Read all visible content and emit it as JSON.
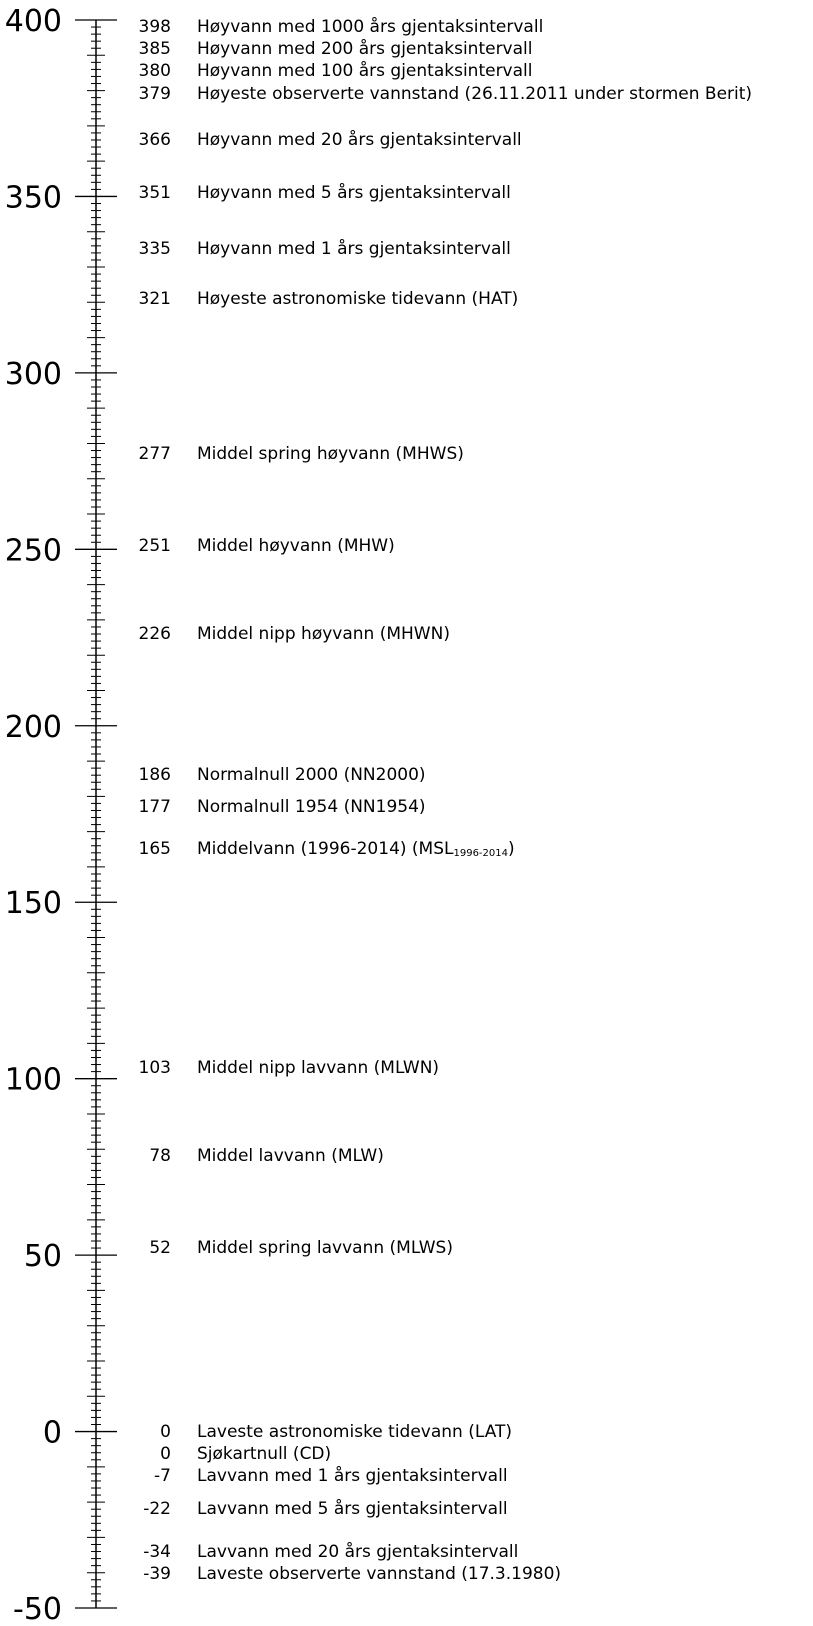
{
  "scale": {
    "min": -50,
    "max": 400,
    "major_labels": [
      "400",
      "350",
      "300",
      "250",
      "200",
      "150",
      "100",
      "50",
      "0",
      "-50"
    ]
  },
  "entries": [
    {
      "value": "398",
      "label": "Høyvann med 1000 års gjentaksintervall",
      "row": 0
    },
    {
      "value": "385",
      "label": "Høyvann med 200 års gjentaksintervall",
      "row": 1
    },
    {
      "value": "380",
      "label": "Høyvann med 100 års gjentaksintervall",
      "row": 2
    },
    {
      "value": "379",
      "label": "Høyeste observerte vannstand (26.11.2011 under stormen Berit)",
      "row": 3
    },
    {
      "value": "366",
      "label": "Høyvann med 20 års gjentaksintervall"
    },
    {
      "value": "351",
      "label": "Høyvann med 5 års gjentaksintervall"
    },
    {
      "value": "335",
      "label": "Høyvann med 1 års gjentaksintervall"
    },
    {
      "value": "321",
      "label": "Høyeste astronomiske tidevann (HAT)"
    },
    {
      "value": "277",
      "label": "Middel spring høyvann (MHWS)"
    },
    {
      "value": "251",
      "label": "Middel høyvann (MHW)"
    },
    {
      "value": "226",
      "label": "Middel nipp høyvann (MHWN)"
    },
    {
      "value": "186",
      "label": "Normalnull 2000 (NN2000)"
    },
    {
      "value": "177",
      "label": "Normalnull 1954 (NN1954)"
    },
    {
      "value": "165",
      "label": "Middelvann (1996-2014) (MSL",
      "sub": "1996-2014",
      "suffix": ")"
    },
    {
      "value": "103",
      "label": "Middel nipp lavvann (MLWN)"
    },
    {
      "value": "78",
      "label": "Middel lavvann (MLW)"
    },
    {
      "value": "52",
      "label": "Middel spring lavvann (MLWS)"
    },
    {
      "value": "0",
      "label": "Laveste astronomiske tidevann (LAT)",
      "group": "zero",
      "row": 0
    },
    {
      "value": "0",
      "label": "Sjøkartnull (CD)",
      "group": "zero",
      "row": 1
    },
    {
      "value": "-7",
      "label": "Lavvann med 1 års gjentaksintervall",
      "group": "zero",
      "row": 2
    },
    {
      "value": "-22",
      "label": "Lavvann med 5 års gjentaksintervall"
    },
    {
      "value": "-34",
      "label": "Lavvann med 20 års gjentaksintervall",
      "group": "low",
      "row": 0
    },
    {
      "value": "-39",
      "label": "Laveste observerte vannstand (17.3.1980)",
      "group": "low",
      "row": 1
    }
  ]
}
